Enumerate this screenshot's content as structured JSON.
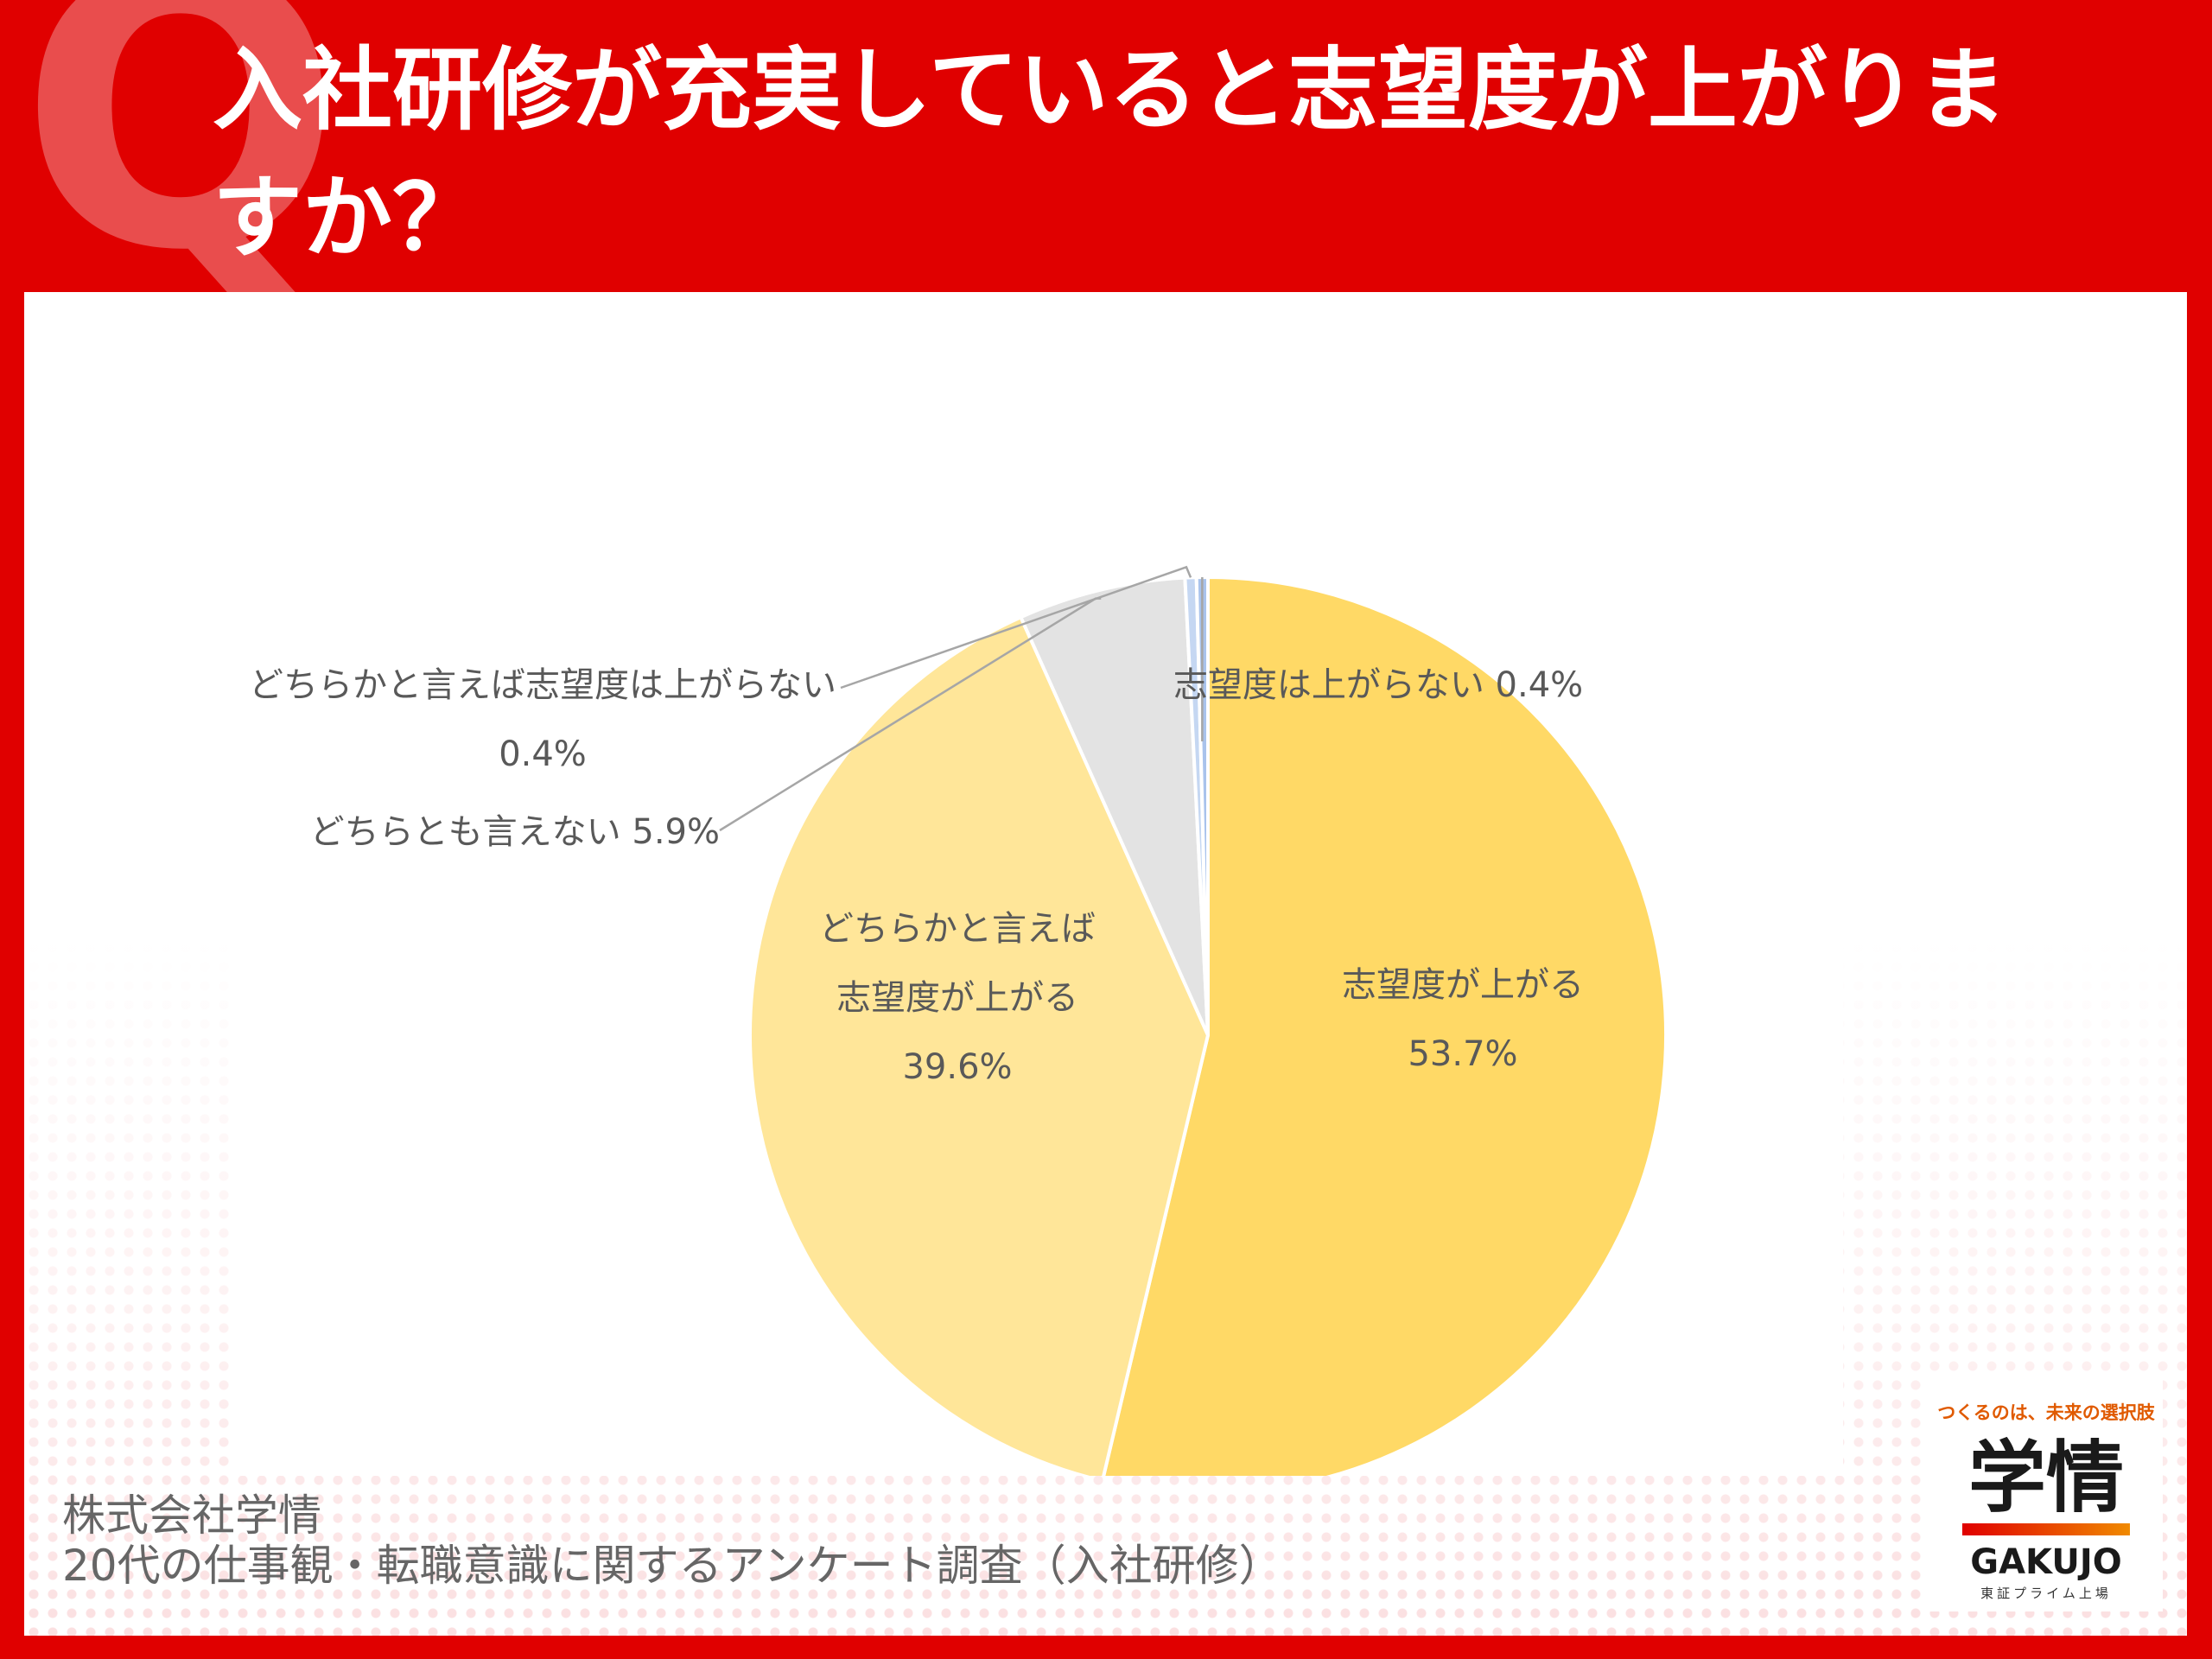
{
  "header": {
    "q_mark": "Q",
    "title": "入社研修が充実していると志望度が上がりますか？"
  },
  "chart_data": {
    "type": "pie",
    "categories": [
      "志望度が上がる",
      "どちらかと言えば志望度が上がる",
      "どちらとも言えない",
      "どちらかと言えば志望度は上がらない",
      "志望度は上がらない"
    ],
    "values": [
      53.7,
      39.6,
      5.9,
      0.4,
      0.4
    ],
    "colors": [
      "#ffd966",
      "#ffe699",
      "#e3e3e3",
      "#c5d7f2",
      "#a9c3ec"
    ],
    "labels": [
      {
        "lines": [
          "志望度が上がる",
          "53.7%"
        ]
      },
      {
        "lines": [
          "どちらかと言えば",
          "志望度が上がる",
          "39.6%"
        ]
      },
      {
        "lines": [
          "どちらとも言えない 5.9%"
        ]
      },
      {
        "lines": [
          "どちらかと言えば志望度は上がらない",
          "0.4%"
        ]
      },
      {
        "lines": [
          "志望度は上がらない 0.4%"
        ]
      }
    ],
    "start_position": "12 o'clock",
    "direction": "clockwise"
  },
  "source": {
    "line1": "株式会社学情",
    "line2": "20代の仕事観・転職意識に関するアンケート調査（入社研修）"
  },
  "logo": {
    "tagline": "つくるのは、未来の選択肢",
    "main": "学情",
    "english": "GAKUJO",
    "sub": "東証プライム上場"
  }
}
